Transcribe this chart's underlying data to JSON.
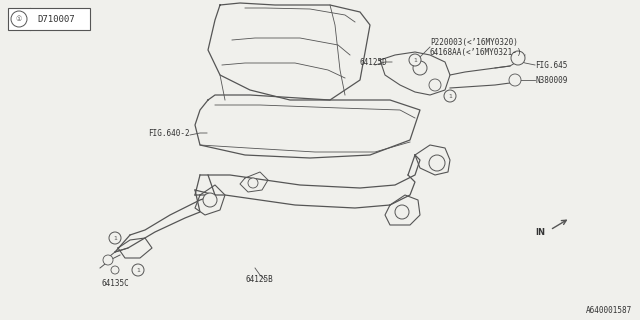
{
  "bg_color": "#f0f0ec",
  "line_color": "#555555",
  "text_color": "#333333",
  "title_box_text": "D710007",
  "labels": {
    "P220003": "P220003(<’16MY0320)",
    "64168AA": "64168AA(<’16MY0321-)",
    "64125D": "64125D",
    "FIG645": "FIG.645",
    "N380009": "N380009",
    "FIG640": "FIG.640-2",
    "64135C": "64135C",
    "64125B": "64125B",
    "IN": "IN",
    "footer": "A640001587"
  }
}
